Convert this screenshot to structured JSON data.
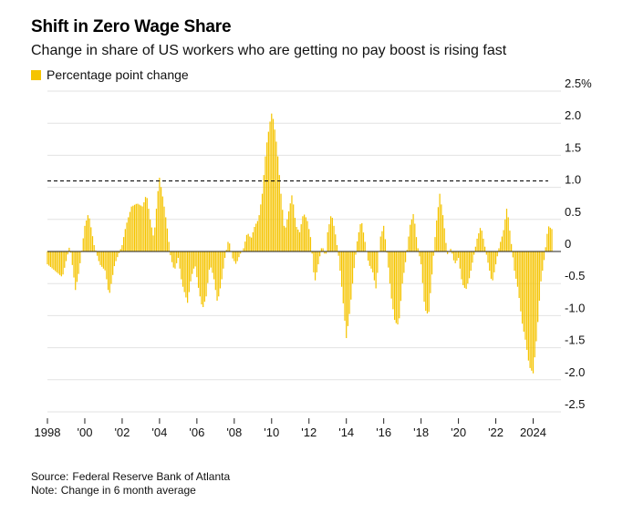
{
  "header": {
    "title": "Shift in Zero Wage Share",
    "subtitle": "Change in share of US workers who are getting no pay boost is rising fast"
  },
  "legend": {
    "label": "Percentage point change",
    "color": "#f5c400"
  },
  "footer": {
    "source_label": "Source:",
    "source": "Federal Reserve Bank of Atlanta",
    "note_label": "Note:",
    "note": "Change in 6 month average"
  },
  "chart_data": {
    "type": "bar",
    "title": "Shift in Zero Wage Share",
    "subtitle": "Change in share of US workers who are getting no pay boost is rising fast",
    "ylabel": "Percentage point change",
    "ylim": [
      -2.5,
      2.5
    ],
    "yticks": [
      2.5,
      2.0,
      1.5,
      1.0,
      0.5,
      0,
      -0.5,
      -1.0,
      -1.5,
      -2.0,
      -2.5
    ],
    "ytick_labels": [
      "2.5%",
      "2.0",
      "1.5",
      "1.0",
      "0.5",
      "0",
      "-0.5",
      "-1.0",
      "-1.5",
      "-2.0",
      "-2.5"
    ],
    "xlim": [
      1998.0,
      2025.0
    ],
    "xticks": [
      1998,
      2000,
      2002,
      2004,
      2006,
      2008,
      2010,
      2012,
      2014,
      2016,
      2018,
      2020,
      2022,
      2024
    ],
    "xtick_labels": [
      "1998",
      "'00",
      "'02",
      "'04",
      "'06",
      "'08",
      "'10",
      "'12",
      "'14",
      "'16",
      "'18",
      "'20",
      "'22",
      "2024"
    ],
    "reference_line": {
      "value": 1.1,
      "style": "dashed"
    },
    "bar_color": "#f5c400",
    "anchors": [
      [
        1998.0,
        -0.2
      ],
      [
        1998.4,
        -0.3
      ],
      [
        1998.8,
        -0.4
      ],
      [
        1999.2,
        0.1
      ],
      [
        1999.5,
        -0.6
      ],
      [
        1999.7,
        -0.3
      ],
      [
        2000.0,
        0.4
      ],
      [
        2000.2,
        0.6
      ],
      [
        2000.5,
        0.1
      ],
      [
        2000.8,
        -0.2
      ],
      [
        2001.1,
        -0.3
      ],
      [
        2001.3,
        -0.7
      ],
      [
        2001.6,
        -0.2
      ],
      [
        2002.0,
        0.1
      ],
      [
        2002.2,
        0.4
      ],
      [
        2002.5,
        0.7
      ],
      [
        2002.8,
        0.75
      ],
      [
        2003.1,
        0.7
      ],
      [
        2003.3,
        0.9
      ],
      [
        2003.5,
        0.5
      ],
      [
        2003.7,
        0.2
      ],
      [
        2003.9,
        0.9
      ],
      [
        2004.0,
        1.15
      ],
      [
        2004.2,
        0.8
      ],
      [
        2004.4,
        0.4
      ],
      [
        2004.6,
        -0.1
      ],
      [
        2004.8,
        -0.3
      ],
      [
        2005.0,
        -0.1
      ],
      [
        2005.2,
        -0.5
      ],
      [
        2005.5,
        -0.8
      ],
      [
        2005.7,
        -0.4
      ],
      [
        2005.9,
        -0.2
      ],
      [
        2006.1,
        -0.6
      ],
      [
        2006.3,
        -0.9
      ],
      [
        2006.5,
        -0.7
      ],
      [
        2006.7,
        -0.2
      ],
      [
        2006.9,
        -0.4
      ],
      [
        2007.1,
        -0.8
      ],
      [
        2007.3,
        -0.5
      ],
      [
        2007.5,
        -0.1
      ],
      [
        2007.7,
        0.2
      ],
      [
        2007.9,
        -0.1
      ],
      [
        2008.1,
        -0.2
      ],
      [
        2008.3,
        -0.05
      ],
      [
        2008.5,
        0.05
      ],
      [
        2008.7,
        0.3
      ],
      [
        2008.9,
        0.2
      ],
      [
        2009.1,
        0.4
      ],
      [
        2009.3,
        0.5
      ],
      [
        2009.5,
        0.9
      ],
      [
        2009.7,
        1.6
      ],
      [
        2009.9,
        2.0
      ],
      [
        2010.0,
        2.15
      ],
      [
        2010.1,
        2.05
      ],
      [
        2010.3,
        1.6
      ],
      [
        2010.5,
        0.9
      ],
      [
        2010.7,
        0.3
      ],
      [
        2010.9,
        0.6
      ],
      [
        2011.1,
        0.9
      ],
      [
        2011.3,
        0.4
      ],
      [
        2011.5,
        0.3
      ],
      [
        2011.7,
        0.6
      ],
      [
        2011.9,
        0.5
      ],
      [
        2012.1,
        0.2
      ],
      [
        2012.3,
        -0.5
      ],
      [
        2012.5,
        -0.2
      ],
      [
        2012.7,
        0.1
      ],
      [
        2012.9,
        -0.1
      ],
      [
        2013.0,
        0.3
      ],
      [
        2013.2,
        0.6
      ],
      [
        2013.4,
        0.3
      ],
      [
        2013.6,
        -0.1
      ],
      [
        2013.8,
        -0.7
      ],
      [
        2014.0,
        -1.35
      ],
      [
        2014.2,
        -0.9
      ],
      [
        2014.4,
        -0.3
      ],
      [
        2014.6,
        0.2
      ],
      [
        2014.8,
        0.5
      ],
      [
        2015.0,
        0.15
      ],
      [
        2015.2,
        -0.2
      ],
      [
        2015.4,
        -0.3
      ],
      [
        2015.6,
        -0.6
      ],
      [
        2015.8,
        0.2
      ],
      [
        2016.0,
        0.4
      ],
      [
        2016.2,
        -0.1
      ],
      [
        2016.4,
        -0.7
      ],
      [
        2016.6,
        -1.1
      ],
      [
        2016.8,
        -1.15
      ],
      [
        2017.0,
        -0.5
      ],
      [
        2017.2,
        -0.1
      ],
      [
        2017.4,
        0.4
      ],
      [
        2017.6,
        0.6
      ],
      [
        2017.8,
        0.1
      ],
      [
        2018.0,
        -0.2
      ],
      [
        2018.2,
        -0.9
      ],
      [
        2018.4,
        -1.0
      ],
      [
        2018.6,
        -0.3
      ],
      [
        2018.8,
        0.4
      ],
      [
        2019.0,
        0.9
      ],
      [
        2019.2,
        0.5
      ],
      [
        2019.4,
        -0.05
      ],
      [
        2019.6,
        0.05
      ],
      [
        2019.8,
        -0.2
      ],
      [
        2020.0,
        -0.1
      ],
      [
        2020.2,
        -0.5
      ],
      [
        2020.4,
        -0.6
      ],
      [
        2020.6,
        -0.4
      ],
      [
        2020.8,
        -0.1
      ],
      [
        2021.0,
        0.2
      ],
      [
        2021.2,
        0.4
      ],
      [
        2021.4,
        0.1
      ],
      [
        2021.6,
        -0.2
      ],
      [
        2021.8,
        -0.5
      ],
      [
        2022.0,
        -0.2
      ],
      [
        2022.2,
        0.1
      ],
      [
        2022.4,
        0.3
      ],
      [
        2022.6,
        0.7
      ],
      [
        2022.8,
        0.2
      ],
      [
        2023.0,
        -0.3
      ],
      [
        2023.2,
        -0.6
      ],
      [
        2023.4,
        -1.1
      ],
      [
        2023.6,
        -1.4
      ],
      [
        2023.8,
        -1.8
      ],
      [
        2024.0,
        -1.9
      ],
      [
        2024.2,
        -1.3
      ],
      [
        2024.4,
        -0.5
      ],
      [
        2024.6,
        -0.1
      ],
      [
        2024.8,
        0.4
      ],
      [
        2025.0,
        0.35
      ]
    ]
  }
}
